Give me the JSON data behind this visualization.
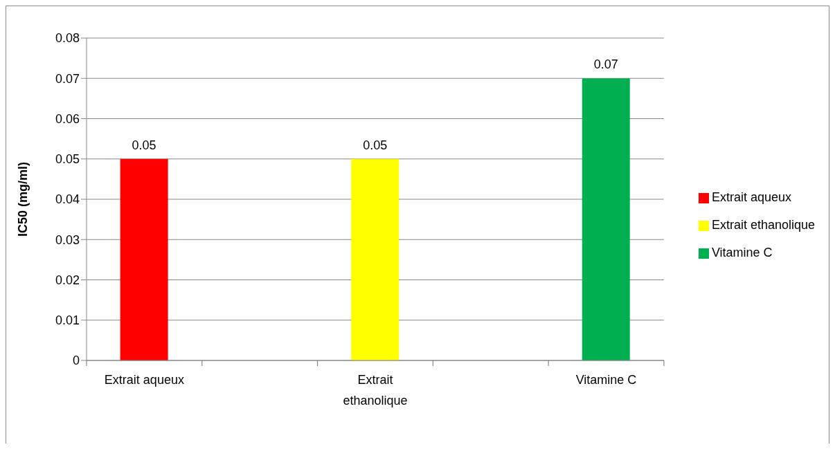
{
  "chart_data": {
    "type": "bar",
    "ylabel": "IC50 (mg/ml)",
    "categories": [
      "Extrait aqueux",
      "Extrait ethanolique",
      "Vitamine C"
    ],
    "series": [
      {
        "name": "Extrait aqueux",
        "color": "#ff0000",
        "values": [
          0.05,
          null,
          null
        ]
      },
      {
        "name": "Extrait ethanolique",
        "color": "#ffff00",
        "values": [
          null,
          0.05,
          null
        ]
      },
      {
        "name": "Vitamine C",
        "color": "#00b050",
        "values": [
          null,
          null,
          0.07
        ]
      }
    ],
    "ylim": [
      0,
      0.08
    ],
    "yticks": [
      0,
      0.01,
      0.02,
      0.03,
      0.04,
      0.05,
      0.06,
      0.07,
      0.08
    ],
    "grid": "y",
    "legend": "right",
    "data_labels": true
  }
}
